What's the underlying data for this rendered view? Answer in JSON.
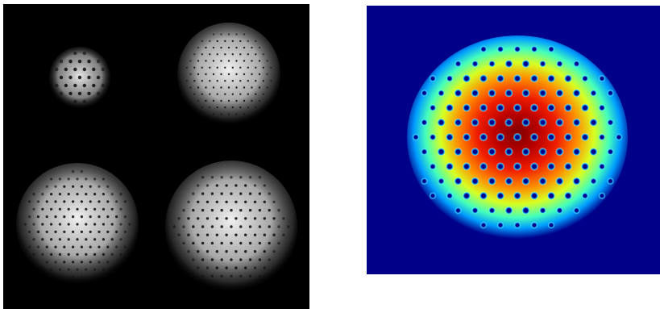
{
  "figure": {
    "left_panel": {
      "description_key": "grayscale-vortex-lattice-condensates",
      "background": "#000000",
      "cloud_color": "#ffffff",
      "vortex_color": "#121212"
    },
    "right_panel": {
      "description_key": "colormap-vortex-lattice-density",
      "background": "#00008b",
      "colormap": [
        "#00008b",
        "#0044ff",
        "#00d9ff",
        "#74ff86",
        "#ffff00",
        "#ff6500",
        "#d10000",
        "#7f0000"
      ],
      "vortex_core_color": "#00008b"
    }
  }
}
